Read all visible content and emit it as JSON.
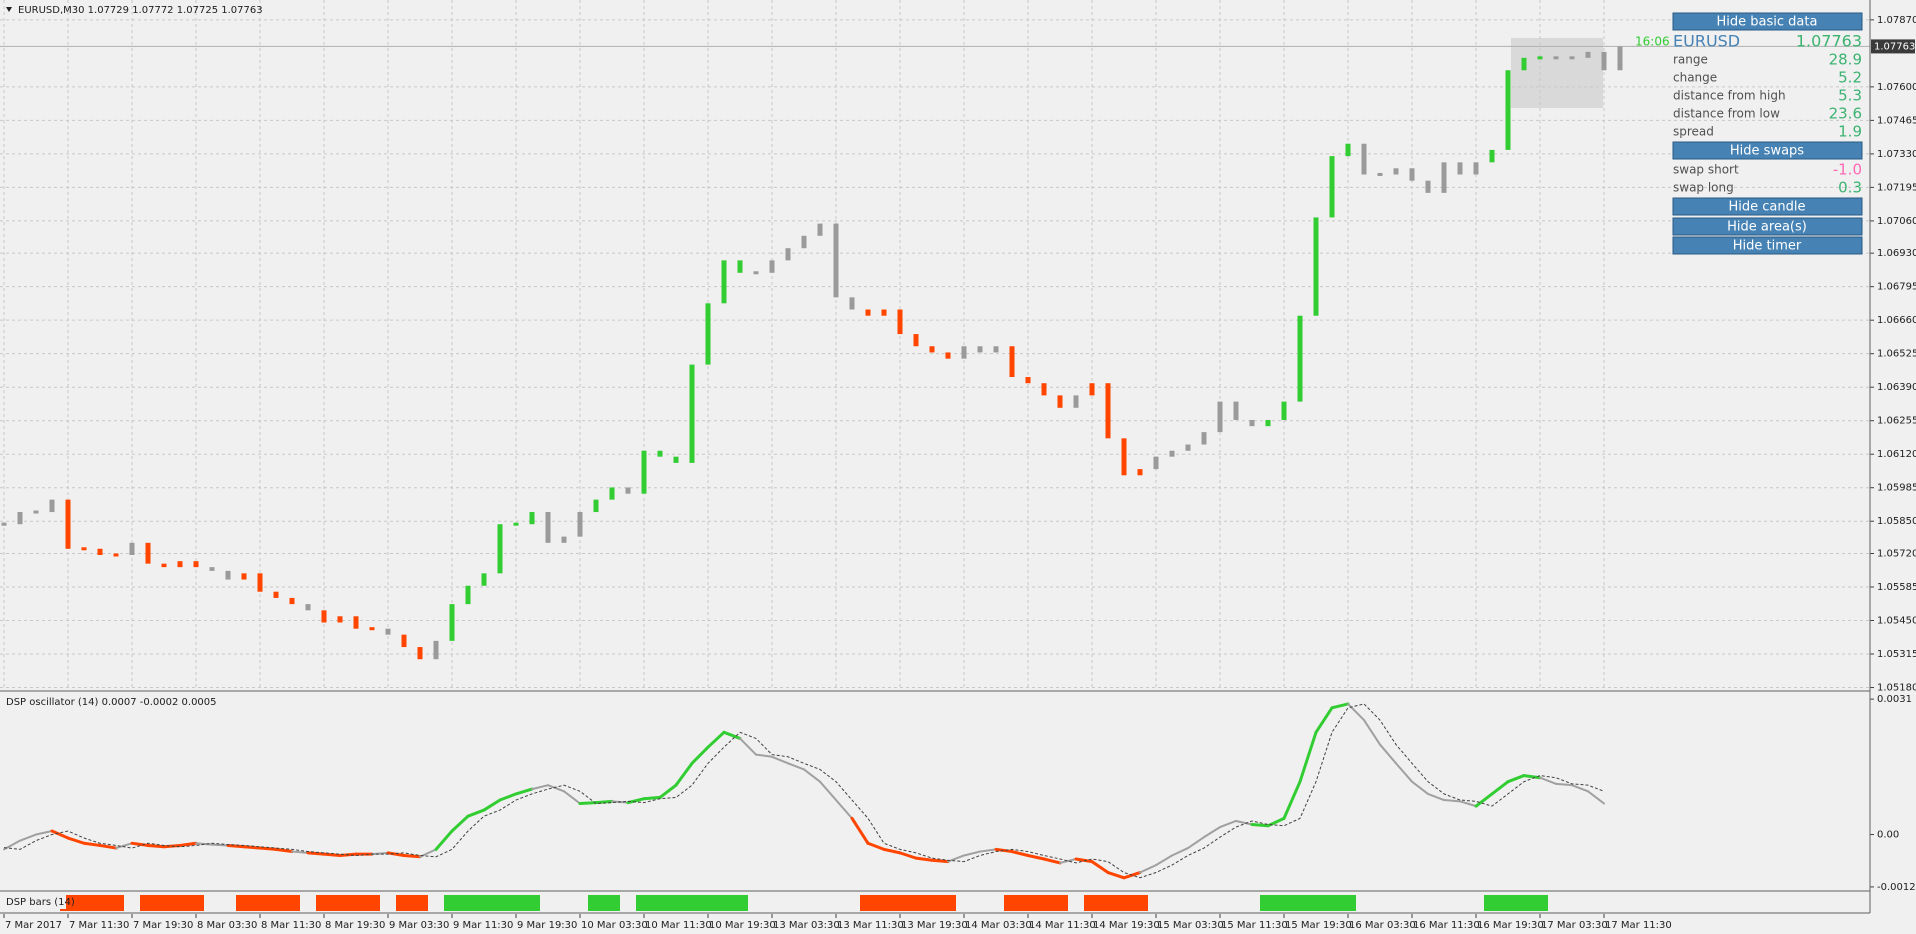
{
  "chart_data": [
    {
      "type": "ohlc",
      "title": "EURUSD,M30  1.07729 1.07772 1.07725 1.07763",
      "categories": [
        "7 Mar 2017",
        null,
        null,
        null,
        "7 Mar 11:30",
        null,
        null,
        null,
        "7 Mar 19:30",
        null,
        null,
        null,
        "8 Mar 03:30",
        null,
        null,
        null,
        "8 Mar 11:30",
        null,
        null,
        null,
        "8 Mar 19:30",
        null,
        null,
        null,
        "9 Mar 03:30",
        null,
        null,
        null,
        "9 Mar 11:30",
        null,
        null,
        null,
        "9 Mar 19:30",
        null,
        null,
        null,
        "10 Mar 03:30",
        null,
        null,
        null,
        "10 Mar 11:30",
        null,
        null,
        null,
        "10 Mar 19:30",
        null,
        null,
        null,
        "13 Mar 03:30",
        null,
        null,
        null,
        "13 Mar 11:30",
        null,
        null,
        null,
        "13 Mar 19:30",
        null,
        null,
        null,
        "14 Mar 03:30",
        null,
        null,
        null,
        "14 Mar 11:30",
        null,
        null,
        null,
        "14 Mar 19:30",
        null,
        null,
        null,
        "15 Mar 03:30",
        null,
        null,
        null,
        "15 Mar 11:30",
        null,
        null,
        null,
        "15 Mar 19:30",
        null,
        null,
        null,
        "16 Mar 03:30",
        null,
        null,
        null,
        "16 Mar 11:30",
        null,
        null,
        null,
        "16 Mar 19:30",
        null,
        null,
        null,
        "17 Mar 03:30",
        null,
        null,
        null,
        "17 Mar 11:30",
        null
      ],
      "values": [
        1.05838,
        1.05887,
        1.05887,
        1.05937,
        1.05739,
        1.05739,
        1.05714,
        1.05714,
        1.05763,
        1.05679,
        1.05665,
        1.05689,
        1.05665,
        1.0565,
        1.05615,
        1.0564,
        1.05566,
        1.05541,
        1.05516,
        1.05491,
        1.05442,
        1.05467,
        1.05417,
        1.05417,
        1.05393,
        1.05343,
        1.05294,
        1.05368,
        1.05516,
        1.0559,
        1.0564,
        1.05838,
        1.05838,
        1.05887,
        1.05763,
        1.05788,
        1.05887,
        1.05937,
        1.05986,
        1.05961,
        1.06134,
        1.0611,
        1.06085,
        1.06481,
        1.06728,
        1.06901,
        1.06851,
        1.06851,
        1.06901,
        1.0695,
        1.07,
        1.07049,
        1.06752,
        1.06703,
        1.06678,
        1.06703,
        1.06604,
        1.06555,
        1.0653,
        1.06505,
        1.06555,
        1.0653,
        1.06555,
        1.06431,
        1.06406,
        1.06357,
        1.06307,
        1.06357,
        1.06406,
        1.06184,
        1.06035,
        1.0606,
        1.0611,
        1.06134,
        1.06159,
        1.06209,
        1.06332,
        1.06258,
        1.06233,
        1.06258,
        1.06332,
        1.06678,
        1.07074,
        1.07321,
        1.07371,
        1.07247,
        1.07247,
        1.07272,
        1.07222,
        1.07173,
        1.07296,
        1.07247,
        1.07296,
        1.07346,
        1.07667,
        1.07717,
        1.07717,
        1.07717,
        1.07717,
        1.07741,
        1.07667,
        1.07763
      ],
      "last_value": 1.07763,
      "timer": "16:06",
      "up_color": "#32cd32",
      "down_color": "#ff4500",
      "neutral_color": "#9a9a9a",
      "ylim": [
        1.0517,
        1.0795
      ],
      "yticks": [
        {
          "value": 1.0787,
          "label": "1.07870"
        },
        {
          "value": 1.076,
          "label": "1.07600"
        },
        1.07465,
        {
          "value": 1.0733,
          "label": "1.07330"
        },
        1.07195,
        {
          "value": 1.0706,
          "label": "1.07060"
        },
        {
          "value": 1.0693,
          "label": "1.06930"
        },
        1.06795,
        {
          "value": 1.0666,
          "label": "1.06660"
        },
        1.06525,
        {
          "value": 1.0639,
          "label": "1.06390"
        },
        1.06255,
        {
          "value": 1.0612,
          "label": "1.06120"
        },
        1.05985,
        {
          "value": 1.0585,
          "label": "1.05850"
        },
        {
          "value": 1.0572,
          "label": "1.05720"
        },
        1.05585,
        {
          "value": 1.0545,
          "label": "1.05450"
        },
        1.05315,
        {
          "value": 1.0518,
          "label": "1.05180"
        }
      ],
      "grid": true
    },
    {
      "type": "line",
      "title": "DSP oscillator (14) 0.0007 -0.0002 0.0005",
      "series": [
        {
          "color": "#a0a0a0",
          "values": [
            -0.00034,
            -0.00014,
            0,
            8e-05,
            -8e-05,
            -0.0002,
            -0.00025,
            -0.00031,
            -0.0002,
            -0.00025,
            -0.00028,
            -0.00025,
            -0.0002,
            -0.00023,
            -0.00025,
            -0.00028,
            -0.00031,
            -0.00034,
            -0.00039,
            -0.00042,
            -0.00045,
            -0.00048,
            -0.00045,
            -0.00045,
            -0.00042,
            -0.00048,
            -0.00051,
            -0.00034,
            8e-05,
            0.00042,
            0.00056,
            0.00079,
            0.00093,
            0.00104,
            0.00113,
            0.00099,
            0.00071,
            0.00073,
            0.00076,
            0.00073,
            0.00082,
            0.00085,
            0.00113,
            0.00163,
            0.002,
            0.00234,
            0.0022,
            0.00183,
            0.00178,
            0.00163,
            0.00149,
            0.00121,
            0.00079,
            0.00037,
            -0.0002,
            -0.00034,
            -0.00042,
            -0.00054,
            -0.00059,
            -0.00062,
            -0.00048,
            -0.00039,
            -0.00034,
            -0.00039,
            -0.00048,
            -0.00056,
            -0.00065,
            -0.00056,
            -0.00062,
            -0.00087,
            -0.00099,
            -0.00087,
            -0.0007,
            -0.00048,
            -0.00031,
            -6e-05,
            0.00017,
            0.00031,
            0.00023,
            0.0002,
            0.00037,
            0.00121,
            0.00234,
            0.0029,
            0.00299,
            0.00262,
            0.00206,
            0.00163,
            0.00121,
            0.00093,
            0.00079,
            0.00076,
            0.00065,
            0.00093,
            0.00121,
            0.00135,
            0.0013,
            0.00116,
            0.00113,
            0.00099,
            0.00071,
            null
          ]
        },
        {
          "color": "#404040",
          "dashed": true,
          "values": [
            -0.0003,
            -0.00034,
            -0.00014,
            0,
            8e-05,
            -8e-05,
            -0.0002,
            -0.00025,
            -0.00031,
            -0.0002,
            -0.00025,
            -0.00028,
            -0.00025,
            -0.0002,
            -0.00023,
            -0.00025,
            -0.00028,
            -0.00031,
            -0.00034,
            -0.00039,
            -0.00042,
            -0.00045,
            -0.00048,
            -0.00045,
            -0.00045,
            -0.00042,
            -0.00048,
            -0.00051,
            -0.00034,
            8e-05,
            0.00042,
            0.00056,
            0.00079,
            0.00093,
            0.00104,
            0.00113,
            0.00099,
            0.00071,
            0.00073,
            0.00076,
            0.00073,
            0.00082,
            0.00085,
            0.00113,
            0.00163,
            0.002,
            0.00234,
            0.0022,
            0.00183,
            0.00178,
            0.00163,
            0.00149,
            0.00121,
            0.00079,
            0.00037,
            -0.0002,
            -0.00034,
            -0.00042,
            -0.00054,
            -0.00059,
            -0.00062,
            -0.00048,
            -0.00039,
            -0.00034,
            -0.00039,
            -0.00048,
            -0.00056,
            -0.00065,
            -0.00056,
            -0.00062,
            -0.00087,
            -0.00099,
            -0.00087,
            -0.0007,
            -0.00048,
            -0.00031,
            -6e-05,
            0.00017,
            0.00031,
            0.00023,
            0.0002,
            0.00037,
            0.00121,
            0.00234,
            0.0029,
            0.00299,
            0.00262,
            0.00206,
            0.00163,
            0.00121,
            0.00093,
            0.00079,
            0.00076,
            0.00065,
            0.00093,
            0.00121,
            0.00135,
            0.0013,
            0.00116,
            0.00113,
            0.00099,
            null
          ]
        }
      ],
      "ylim": [
        -0.00127,
        0.00324
      ],
      "yticks": [
        0.0031,
        {
          "value": 0,
          "label": "0.00"
        },
        -0.0012
      ]
    },
    {
      "type": "state",
      "title": "DSP bars (14)",
      "values": [
        0,
        0,
        0,
        0,
        -1,
        -1,
        -1,
        -1,
        0,
        -1,
        -1,
        -1,
        -1,
        0,
        0,
        -1,
        -1,
        -1,
        -1,
        0,
        -1,
        -1,
        -1,
        -1,
        0,
        -1,
        -1,
        0,
        1,
        1,
        1,
        1,
        1,
        1,
        0,
        0,
        0,
        1,
        1,
        0,
        1,
        1,
        1,
        1,
        1,
        1,
        1,
        0,
        0,
        0,
        0,
        0,
        0,
        0,
        -1,
        -1,
        -1,
        -1,
        -1,
        -1,
        0,
        0,
        0,
        -1,
        -1,
        -1,
        -1,
        0,
        -1,
        -1,
        -1,
        -1,
        0,
        0,
        0,
        0,
        0,
        0,
        0,
        1,
        1,
        1,
        1,
        1,
        1,
        0,
        0,
        0,
        0,
        0,
        0,
        0,
        0,
        1,
        1,
        1,
        1,
        0,
        0,
        0,
        0,
        0
      ]
    }
  ],
  "panel": {
    "buttons": [
      "Hide basic data",
      "Hide swaps",
      "Hide candle",
      "Hide area(s)",
      "Hide timer"
    ],
    "button_color": "#4682b4",
    "symbol": "EURUSD",
    "symbol_color": "#4682b4",
    "price": 1.07763,
    "value_color": "#3cb371",
    "negative_color": "#ff69b4",
    "rows": [
      {
        "label": "range",
        "value": 28.9
      },
      {
        "label": "change",
        "value": 5.2
      },
      {
        "label": "distance from high",
        "value": 5.3
      },
      {
        "label": "distance from low",
        "value": 23.6
      },
      {
        "label": "spread",
        "value": 1.9
      }
    ],
    "swaps": [
      {
        "label": "swap short",
        "value": -1,
        "value_label": "-1.0"
      },
      {
        "label": "swap long",
        "value": 0.3
      }
    ]
  }
}
